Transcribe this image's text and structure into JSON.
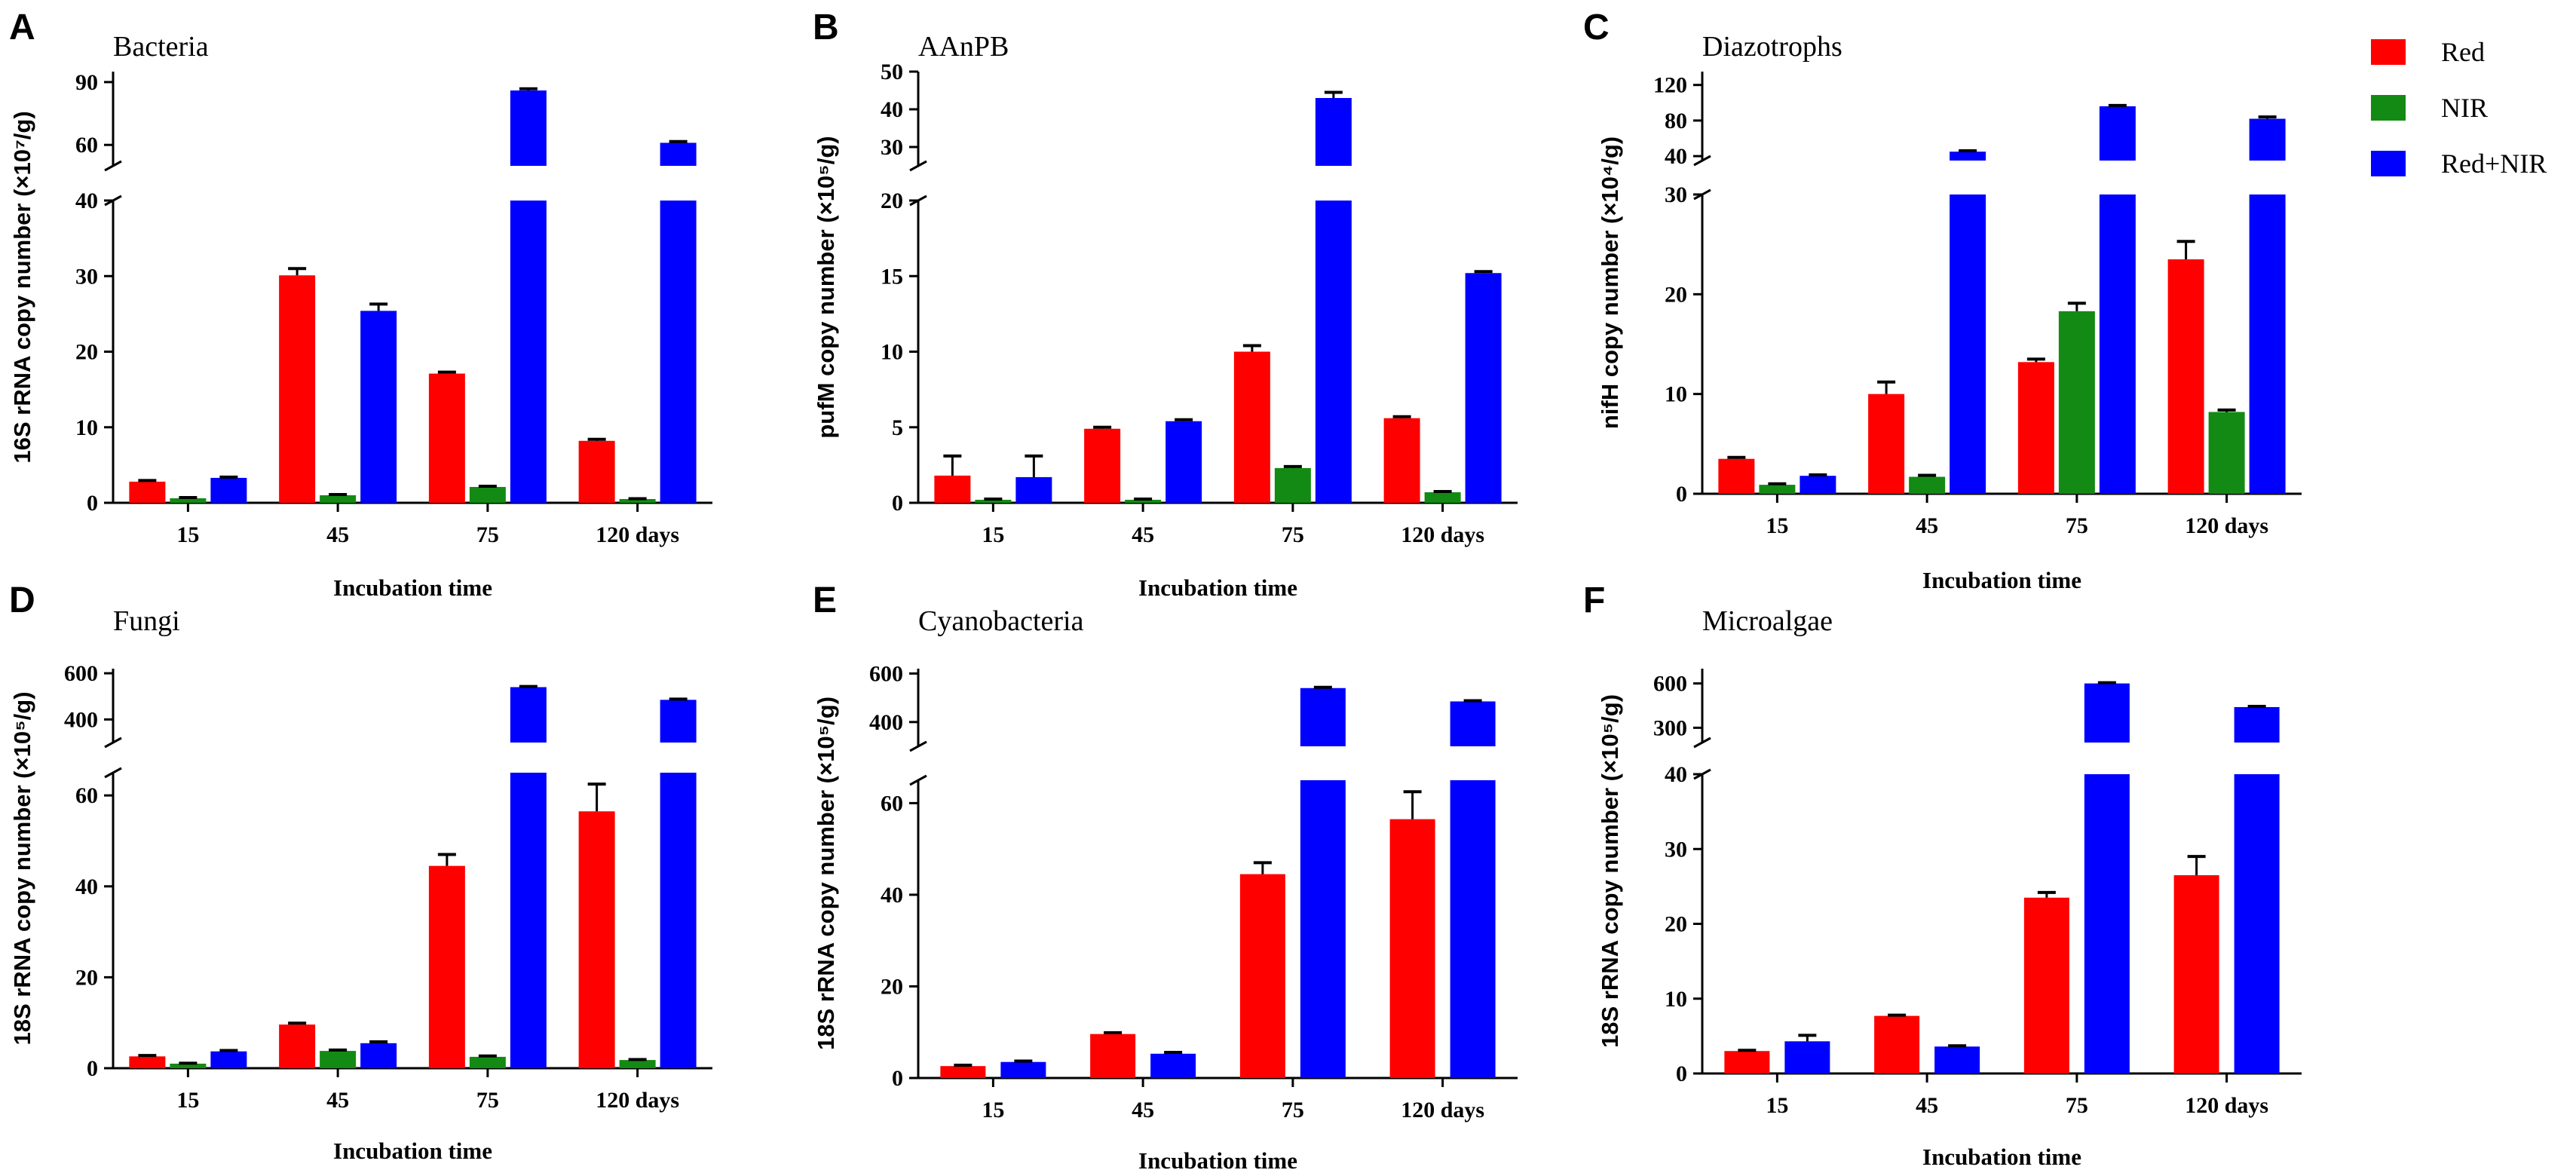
{
  "legend": {
    "entries": [
      {
        "name": "Red",
        "color": "#ff0000"
      },
      {
        "name": "NIR",
        "color": "#138a13"
      },
      {
        "name": "Red+NIR",
        "color": "#0000ff"
      }
    ]
  },
  "chart_data": [
    {
      "id": "A",
      "type": "bar",
      "title": "Bacteria",
      "ylabel": "16S rRNA copy number (×10⁷/g)",
      "xlabel": "Incubation time",
      "categories": [
        "15",
        "45",
        "75",
        "120 days"
      ],
      "lower": {
        "ylim": [
          0,
          40
        ],
        "ticks": [
          0,
          10,
          20,
          30,
          40
        ]
      },
      "upper": {
        "ylim": [
          50,
          95
        ],
        "ticks": [
          60,
          90
        ]
      },
      "series": [
        {
          "name": "Red",
          "values": [
            2.8,
            30.1,
            17.1,
            8.2
          ],
          "errors": [
            0.15,
            0.9,
            0.2,
            0.2
          ]
        },
        {
          "name": "NIR",
          "values": [
            0.6,
            1.0,
            2.1,
            0.5
          ],
          "errors": [
            0.1,
            0.1,
            0.1,
            0.05
          ]
        },
        {
          "name": "Red+NIR",
          "values": [
            3.3,
            25.4,
            86,
            61
          ],
          "errors": [
            0.1,
            0.9,
            0.8,
            0.6
          ]
        }
      ]
    },
    {
      "id": "B",
      "type": "bar",
      "title": "AAnPB",
      "ylabel": "pufM copy number (×10⁵/g)",
      "xlabel": "Incubation time",
      "categories": [
        "15",
        "45",
        "75",
        "120 days"
      ],
      "lower": {
        "ylim": [
          0,
          20
        ],
        "ticks": [
          0,
          5,
          10,
          15,
          20
        ]
      },
      "upper": {
        "ylim": [
          25,
          50
        ],
        "ticks": [
          30,
          40,
          50
        ]
      },
      "series": [
        {
          "name": "Red",
          "values": [
            1.8,
            4.9,
            10.0,
            5.6
          ],
          "errors": [
            1.3,
            0.1,
            0.4,
            0.1
          ]
        },
        {
          "name": "NIR",
          "values": [
            0.2,
            0.2,
            2.3,
            0.7
          ],
          "errors": [
            0.05,
            0.05,
            0.1,
            0.05
          ]
        },
        {
          "name": "Red+NIR",
          "values": [
            1.7,
            5.4,
            43,
            15.2
          ],
          "errors": [
            1.4,
            0.1,
            1.5,
            0.1
          ]
        }
      ]
    },
    {
      "id": "C",
      "type": "bar",
      "title": "Diazotrophs",
      "ylabel": "nifH copy number (×10⁴/g)",
      "xlabel": "Incubation time",
      "categories": [
        "15",
        "45",
        "75",
        "120 days"
      ],
      "lower": {
        "ylim": [
          0,
          30
        ],
        "ticks": [
          0,
          10,
          20,
          30
        ]
      },
      "upper": {
        "ylim": [
          35,
          135
        ],
        "ticks": [
          40,
          80,
          120
        ]
      },
      "series": [
        {
          "name": "Red",
          "values": [
            3.5,
            10.0,
            13.2,
            23.5
          ],
          "errors": [
            0.15,
            1.2,
            0.3,
            1.8
          ]
        },
        {
          "name": "NIR",
          "values": [
            0.9,
            1.7,
            18.3,
            8.2
          ],
          "errors": [
            0.1,
            0.15,
            0.8,
            0.2
          ]
        },
        {
          "name": "Red+NIR",
          "values": [
            1.8,
            45,
            96,
            82
          ],
          "errors": [
            0.1,
            1,
            1,
            2
          ]
        }
      ]
    },
    {
      "id": "D",
      "type": "bar",
      "title": "Fungi",
      "ylabel": "18S rRNA copy number (×10⁵/g)",
      "xlabel": "Incubation time",
      "categories": [
        "15",
        "45",
        "75",
        "120 days"
      ],
      "lower": {
        "ylim": [
          0,
          65
        ],
        "ticks": [
          0,
          20,
          40,
          60
        ]
      },
      "upper": {
        "ylim": [
          300,
          620
        ],
        "ticks": [
          400,
          600
        ]
      },
      "series": [
        {
          "name": "Red",
          "values": [
            2.6,
            9.6,
            44.5,
            56.5
          ],
          "errors": [
            0.2,
            0.3,
            2.5,
            6
          ]
        },
        {
          "name": "NIR",
          "values": [
            1.0,
            3.8,
            2.5,
            1.8
          ],
          "errors": [
            0.1,
            0.2,
            0.2,
            0.1
          ]
        },
        {
          "name": "Red+NIR",
          "values": [
            3.7,
            5.5,
            540,
            485
          ],
          "errors": [
            0.2,
            0.3,
            3,
            3
          ]
        }
      ]
    },
    {
      "id": "E",
      "type": "bar",
      "title": "Cyanobacteria",
      "ylabel": "18S rRNA copy number (×10⁵/g)",
      "xlabel": "Incubation time",
      "categories": [
        "15",
        "45",
        "75",
        "120 days"
      ],
      "lower": {
        "ylim": [
          0,
          65
        ],
        "ticks": [
          0,
          20,
          40,
          60
        ]
      },
      "upper": {
        "ylim": [
          300,
          620
        ],
        "ticks": [
          400,
          600
        ]
      },
      "series": [
        {
          "name": "Red",
          "values": [
            2.6,
            9.6,
            44.5,
            56.5
          ],
          "errors": [
            0.2,
            0.3,
            2.5,
            6
          ]
        },
        {
          "name": "Red+NIR",
          "values": [
            3.5,
            5.3,
            540,
            485
          ],
          "errors": [
            0.2,
            0.3,
            3,
            3
          ]
        }
      ]
    },
    {
      "id": "F",
      "type": "bar",
      "title": "Microalgae",
      "ylabel": "18S rRNA copy number (×10⁵/g)",
      "xlabel": "Incubation time",
      "categories": [
        "15",
        "45",
        "75",
        "120 days"
      ],
      "lower": {
        "ylim": [
          0,
          40
        ],
        "ticks": [
          0,
          10,
          20,
          30,
          40
        ]
      },
      "upper": {
        "ylim": [
          200,
          700
        ],
        "ticks": [
          300,
          600
        ]
      },
      "series": [
        {
          "name": "Red",
          "values": [
            3.0,
            7.7,
            23.5,
            26.5
          ],
          "errors": [
            0.1,
            0.1,
            0.7,
            2.5
          ]
        },
        {
          "name": "Red+NIR",
          "values": [
            4.3,
            3.6,
            600,
            440
          ],
          "errors": [
            0.8,
            0.1,
            5,
            5
          ]
        }
      ]
    }
  ]
}
